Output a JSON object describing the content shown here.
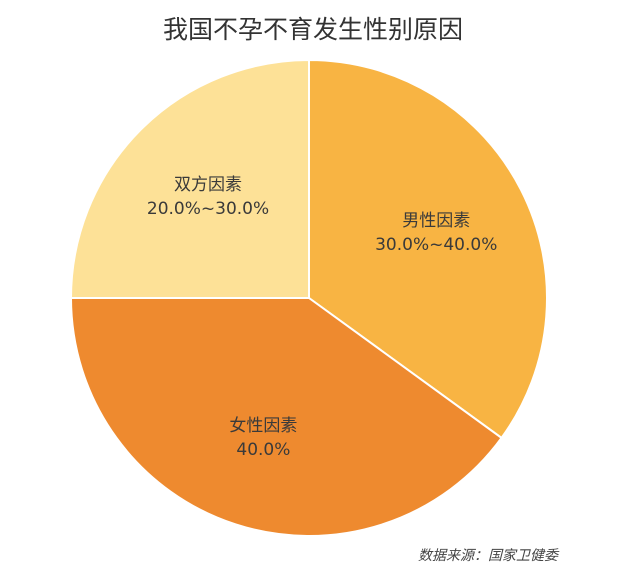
{
  "chart_data": {
    "type": "pie",
    "title": "我国不孕不育发生性别原因",
    "slices": [
      {
        "label": "男性因素",
        "display": "30.0%~40.0%",
        "value": 35,
        "color": "#F8B443"
      },
      {
        "label": "女性因素",
        "display": "40.0%",
        "value": 40,
        "color": "#EE8A2F"
      },
      {
        "label": "双方因素",
        "display": "20.0%~30.0%",
        "value": 25,
        "color": "#FDE197"
      }
    ]
  },
  "source_note": "数据来源：国家卫健委"
}
